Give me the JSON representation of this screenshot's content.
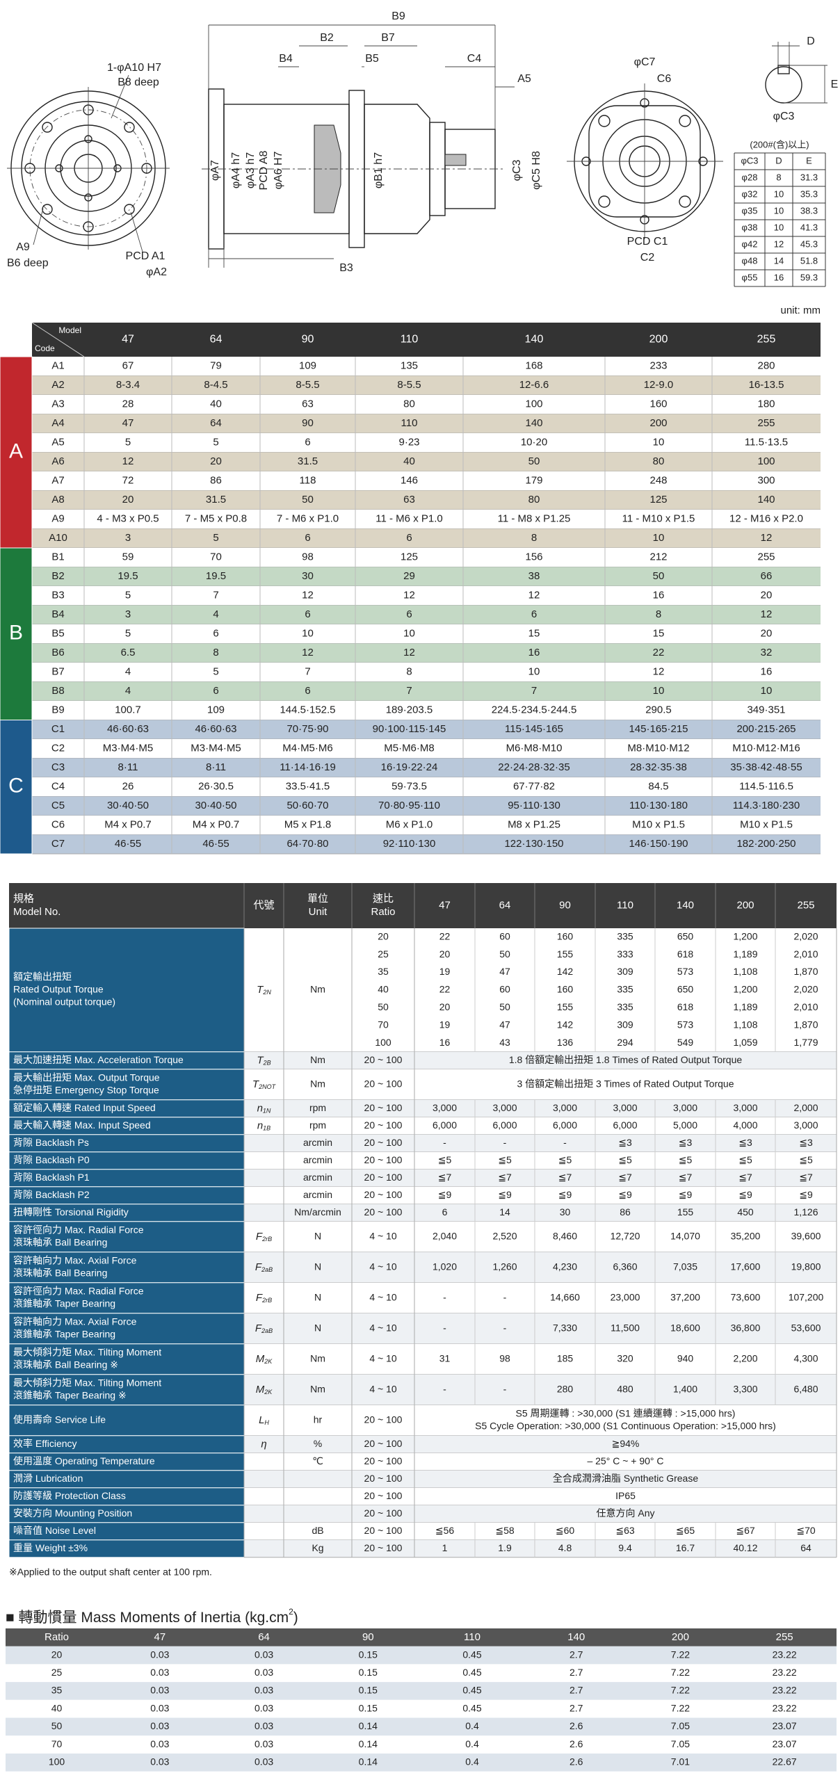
{
  "drawing": {
    "labels": [
      "B9",
      "B2",
      "B7",
      "B4",
      "B5",
      "C4",
      "A5",
      "1-φA10 H7",
      "B8 deep",
      "A9",
      "B6 deep",
      "PCD A1",
      "φA2",
      "φA7",
      "φA4 h7",
      "φA3 h7",
      "PCD A8",
      "φA6 H7",
      "φB1 h7",
      "B3",
      "φC3",
      "φC5 H8",
      "φC7",
      "C6",
      "PCD C1",
      "C2",
      "D",
      "E",
      "φC3"
    ],
    "keyway_table": {
      "caption": "(200#(含)以上)",
      "header": [
        "φC3",
        "D",
        "E"
      ],
      "rows": [
        [
          "φ28",
          "8",
          "31.3"
        ],
        [
          "φ32",
          "10",
          "35.3"
        ],
        [
          "φ35",
          "10",
          "38.3"
        ],
        [
          "φ38",
          "10",
          "41.3"
        ],
        [
          "φ42",
          "12",
          "45.3"
        ],
        [
          "φ48",
          "14",
          "51.8"
        ],
        [
          "φ55",
          "16",
          "59.3"
        ]
      ]
    }
  },
  "unit": "unit: mm",
  "dimensions": {
    "corner_top": "Model",
    "corner_bottom": "Code",
    "models": [
      "47",
      "64",
      "90",
      "110",
      "140",
      "200",
      "255"
    ],
    "groups": [
      {
        "name": "A",
        "rows": [
          {
            "code": "A1",
            "values": [
              "67",
              "79",
              "109",
              "135",
              "168",
              "233",
              "280"
            ]
          },
          {
            "code": "A2",
            "values": [
              "8-3.4",
              "8-4.5",
              "8-5.5",
              "8-5.5",
              "12-6.6",
              "12-9.0",
              "16-13.5"
            ]
          },
          {
            "code": "A3",
            "values": [
              "28",
              "40",
              "63",
              "80",
              "100",
              "160",
              "180"
            ]
          },
          {
            "code": "A4",
            "values": [
              "47",
              "64",
              "90",
              "110",
              "140",
              "200",
              "255"
            ]
          },
          {
            "code": "A5",
            "values": [
              "5",
              "5",
              "6",
              "9·23",
              "10·20",
              "10",
              "11.5·13.5"
            ]
          },
          {
            "code": "A6",
            "values": [
              "12",
              "20",
              "31.5",
              "40",
              "50",
              "80",
              "100"
            ]
          },
          {
            "code": "A7",
            "values": [
              "72",
              "86",
              "118",
              "146",
              "179",
              "248",
              "300"
            ]
          },
          {
            "code": "A8",
            "values": [
              "20",
              "31.5",
              "50",
              "63",
              "80",
              "125",
              "140"
            ]
          },
          {
            "code": "A9",
            "values": [
              "4 - M3 x P0.5",
              "7 - M5 x P0.8",
              "7 - M6 x P1.0",
              "11 - M6 x P1.0",
              "11 - M8 x P1.25",
              "11 - M10 x P1.5",
              "12 - M16 x P2.0"
            ]
          },
          {
            "code": "A10",
            "values": [
              "3",
              "5",
              "6",
              "6",
              "8",
              "10",
              "12"
            ]
          }
        ]
      },
      {
        "name": "B",
        "rows": [
          {
            "code": "B1",
            "values": [
              "59",
              "70",
              "98",
              "125",
              "156",
              "212",
              "255"
            ]
          },
          {
            "code": "B2",
            "values": [
              "19.5",
              "19.5",
              "30",
              "29",
              "38",
              "50",
              "66"
            ]
          },
          {
            "code": "B3",
            "values": [
              "5",
              "7",
              "12",
              "12",
              "12",
              "16",
              "20"
            ]
          },
          {
            "code": "B4",
            "values": [
              "3",
              "4",
              "6",
              "6",
              "6",
              "8",
              "12"
            ]
          },
          {
            "code": "B5",
            "values": [
              "5",
              "6",
              "10",
              "10",
              "15",
              "15",
              "20"
            ]
          },
          {
            "code": "B6",
            "values": [
              "6.5",
              "8",
              "12",
              "12",
              "16",
              "22",
              "32"
            ]
          },
          {
            "code": "B7",
            "values": [
              "4",
              "5",
              "7",
              "8",
              "10",
              "12",
              "16"
            ]
          },
          {
            "code": "B8",
            "values": [
              "4",
              "6",
              "6",
              "7",
              "7",
              "10",
              "10"
            ]
          },
          {
            "code": "B9",
            "values": [
              "100.7",
              "109",
              "144.5·152.5",
              "189·203.5",
              "224.5·234.5·244.5",
              "290.5",
              "349·351"
            ]
          }
        ]
      },
      {
        "name": "C",
        "rows": [
          {
            "code": "C1",
            "values": [
              "46·60·63",
              "46·60·63",
              "70·75·90",
              "90·100·115·145",
              "115·145·165",
              "145·165·215",
              "200·215·265"
            ]
          },
          {
            "code": "C2",
            "values": [
              "M3·M4·M5",
              "M3·M4·M5",
              "M4·M5·M6",
              "M5·M6·M8",
              "M6·M8·M10",
              "M8·M10·M12",
              "M10·M12·M16"
            ]
          },
          {
            "code": "C3",
            "values": [
              "8·11",
              "8·11",
              "11·14·16·19",
              "16·19·22·24",
              "22·24·28·32·35",
              "28·32·35·38",
              "35·38·42·48·55"
            ]
          },
          {
            "code": "C4",
            "values": [
              "26",
              "26·30.5",
              "33.5·41.5",
              "59·73.5",
              "67·77·82",
              "84.5",
              "114.5·116.5"
            ]
          },
          {
            "code": "C5",
            "values": [
              "30·40·50",
              "30·40·50",
              "50·60·70",
              "70·80·95·110",
              "95·110·130",
              "110·130·180",
              "114.3·180·230"
            ]
          },
          {
            "code": "C6",
            "values": [
              "M4 x P0.7",
              "M4 x P0.7",
              "M5 x P1.8",
              "M6 x P1.0",
              "M8 x P1.25",
              "M10 x P1.5",
              "M10 x P1.5"
            ]
          },
          {
            "code": "C7",
            "values": [
              "46·55",
              "46·55",
              "64·70·80",
              "92·110·130",
              "122·130·150",
              "146·150·190",
              "182·200·250"
            ]
          }
        ]
      }
    ]
  },
  "specs": {
    "header": {
      "spec": [
        "規格",
        "Model No."
      ],
      "symbol": "代號",
      "unit": [
        "單位",
        "Unit"
      ],
      "ratio": [
        "速比",
        "Ratio"
      ],
      "models": [
        "47",
        "64",
        "90",
        "110",
        "140",
        "200",
        "255"
      ]
    },
    "rows": [
      {
        "label": [
          "額定輸出扭矩",
          "Rated Output Torque",
          "(Nominal output torque)"
        ],
        "symbol": {
          "base": "T",
          "sub": "2N"
        },
        "unit": "Nm",
        "ratio": [
          "20",
          "25",
          "35",
          "40",
          "50",
          "70",
          "100"
        ],
        "values": [
          [
            "22",
            "60",
            "160",
            "335",
            "650",
            "1,200",
            "2,020"
          ],
          [
            "20",
            "50",
            "155",
            "333",
            "618",
            "1,189",
            "2,010"
          ],
          [
            "19",
            "47",
            "142",
            "309",
            "573",
            "1,108",
            "1,870"
          ],
          [
            "22",
            "60",
            "160",
            "335",
            "650",
            "1,200",
            "2,020"
          ],
          [
            "20",
            "50",
            "155",
            "335",
            "618",
            "1,189",
            "2,010"
          ],
          [
            "19",
            "47",
            "142",
            "309",
            "573",
            "1,108",
            "1,870"
          ],
          [
            "16",
            "43",
            "136",
            "294",
            "549",
            "1,059",
            "1,779"
          ]
        ]
      },
      {
        "label": [
          "最大加速扭矩 Max. Acceleration Torque"
        ],
        "symbol": {
          "base": "T",
          "sub": "2B"
        },
        "unit": "Nm",
        "ratio": "20 ~ 100",
        "span": [
          "1.8 倍額定輸出扭矩  1.8 Times of Rated Output Torque"
        ]
      },
      {
        "label": [
          "最大輸出扭矩  Max. Output Torque",
          "急停扭矩  Emergency Stop Torque"
        ],
        "symbol": {
          "base": "T",
          "sub": "2NOT"
        },
        "unit": "Nm",
        "ratio": "20 ~ 100",
        "span": [
          "3 倍額定輸出扭矩  3 Times of Rated Output Torque"
        ]
      },
      {
        "label": [
          "額定輸入轉速  Rated Input Speed"
        ],
        "symbol": {
          "base": "n",
          "sub": "1N"
        },
        "unit": "rpm",
        "ratio": "20 ~ 100",
        "values": [
          "3,000",
          "3,000",
          "3,000",
          "3,000",
          "3,000",
          "3,000",
          "2,000"
        ]
      },
      {
        "label": [
          "最大輸入轉速  Max. Input Speed"
        ],
        "symbol": {
          "base": "n",
          "sub": "1B"
        },
        "unit": "rpm",
        "ratio": "20 ~ 100",
        "values": [
          "6,000",
          "6,000",
          "6,000",
          "6,000",
          "5,000",
          "4,000",
          "3,000"
        ]
      },
      {
        "label": [
          "背隙  Backlash Ps"
        ],
        "unit": "arcmin",
        "ratio": "20 ~ 100",
        "values": [
          "-",
          "-",
          "-",
          "≦3",
          "≦3",
          "≦3",
          "≦3"
        ]
      },
      {
        "label": [
          "背隙  Backlash P0"
        ],
        "unit": "arcmin",
        "ratio": "20 ~ 100",
        "values": [
          "≦5",
          "≦5",
          "≦5",
          "≦5",
          "≦5",
          "≦5",
          "≦5"
        ]
      },
      {
        "label": [
          "背隙  Backlash P1"
        ],
        "unit": "arcmin",
        "ratio": "20 ~ 100",
        "values": [
          "≦7",
          "≦7",
          "≦7",
          "≦7",
          "≦7",
          "≦7",
          "≦7"
        ]
      },
      {
        "label": [
          "背隙  Backlash P2"
        ],
        "unit": "arcmin",
        "ratio": "20 ~ 100",
        "values": [
          "≦9",
          "≦9",
          "≦9",
          "≦9",
          "≦9",
          "≦9",
          "≦9"
        ]
      },
      {
        "label": [
          "扭轉剛性  Torsional Rigidity"
        ],
        "unit": "Nm/arcmin",
        "ratio": "20 ~ 100",
        "values": [
          "6",
          "14",
          "30",
          "86",
          "155",
          "450",
          "1,126"
        ]
      },
      {
        "label": [
          "容許徑向力  Max. Radial Force",
          "滾珠軸承  Ball Bearing"
        ],
        "symbol": {
          "base": "F",
          "sub": "2rB"
        },
        "unit": "N",
        "ratio": "4 ~ 10",
        "values": [
          "2,040",
          "2,520",
          "8,460",
          "12,720",
          "14,070",
          "35,200",
          "39,600"
        ]
      },
      {
        "label": [
          "容許軸向力  Max. Axial Force",
          "滾珠軸承  Ball Bearing"
        ],
        "symbol": {
          "base": "F",
          "sub": "2aB"
        },
        "unit": "N",
        "ratio": "4 ~ 10",
        "values": [
          "1,020",
          "1,260",
          "4,230",
          "6,360",
          "7,035",
          "17,600",
          "19,800"
        ]
      },
      {
        "label": [
          "容許徑向力  Max. Radial Force",
          "滾錐軸承  Taper Bearing"
        ],
        "symbol": {
          "base": "F",
          "sub": "2rB"
        },
        "unit": "N",
        "ratio": "4 ~ 10",
        "values": [
          "-",
          "-",
          "14,660",
          "23,000",
          "37,200",
          "73,600",
          "107,200"
        ]
      },
      {
        "label": [
          "容許軸向力  Max. Axial Force",
          "滾錐軸承  Taper Bearing"
        ],
        "symbol": {
          "base": "F",
          "sub": "2aB"
        },
        "unit": "N",
        "ratio": "4 ~ 10",
        "values": [
          "-",
          "-",
          "7,330",
          "11,500",
          "18,600",
          "36,800",
          "53,600"
        ]
      },
      {
        "label": [
          "最大傾斜力矩  Max. Tilting Moment",
          "滾珠軸承  Ball Bearing  ※"
        ],
        "symbol": {
          "base": "M",
          "sub": "2K"
        },
        "unit": "Nm",
        "ratio": "4 ~ 10",
        "values": [
          "31",
          "98",
          "185",
          "320",
          "940",
          "2,200",
          "4,300"
        ]
      },
      {
        "label": [
          "最大傾斜力矩  Max. Tilting Moment",
          "滾錐軸承  Taper Bearing  ※"
        ],
        "symbol": {
          "base": "M",
          "sub": "2K"
        },
        "unit": "Nm",
        "ratio": "4 ~ 10",
        "values": [
          "-",
          "-",
          "280",
          "480",
          "1,400",
          "3,300",
          "6,480"
        ]
      },
      {
        "label": [
          "使用壽命  Service Life"
        ],
        "symbol": {
          "base": "L",
          "sub": "H"
        },
        "unit": "hr",
        "ratio": "20 ~ 100",
        "span": [
          "S5 周期運轉 : >30,000 (S1 連續運轉 : >15,000 hrs)",
          "S5 Cycle Operation: >30,000 (S1 Continuous Operation: >15,000 hrs)"
        ]
      },
      {
        "label": [
          "效率  Efficiency"
        ],
        "symbol": {
          "base": "η"
        },
        "unit": "%",
        "ratio": "20 ~ 100",
        "span": [
          "≧94%"
        ]
      },
      {
        "label": [
          "使用溫度  Operating Temperature"
        ],
        "unit": "℃",
        "ratio": "20 ~ 100",
        "span": [
          "– 25° C  ~  + 90° C"
        ]
      },
      {
        "label": [
          "潤滑  Lubrication"
        ],
        "ratio": "20 ~ 100",
        "span": [
          "全合成潤滑油脂  Synthetic Grease"
        ]
      },
      {
        "label": [
          "防護等級  Protection Class"
        ],
        "ratio": "20 ~ 100",
        "span": [
          "IP65"
        ]
      },
      {
        "label": [
          "安裝方向  Mounting Position"
        ],
        "ratio": "20 ~ 100",
        "span": [
          "任意方向  Any"
        ]
      },
      {
        "label": [
          "噪音值  Noise Level"
        ],
        "unit": "dB",
        "ratio": "20 ~ 100",
        "values": [
          "≦56",
          "≦58",
          "≦60",
          "≦63",
          "≦65",
          "≦67",
          "≦70"
        ]
      },
      {
        "label": [
          "重量  Weight  ±3%"
        ],
        "unit": "Kg",
        "ratio": "20 ~ 100",
        "values": [
          "1",
          "1.9",
          "4.8",
          "9.4",
          "16.7",
          "40.12",
          "64"
        ]
      }
    ]
  },
  "footnote": "※Applied to the output shaft center at 100 rpm.",
  "inertia": {
    "title": {
      "text": "■ 轉動慣量 Mass Moments of Inertia (kg.cm",
      "sup": "2",
      "end": ")"
    },
    "header": [
      "Ratio",
      "47",
      "64",
      "90",
      "110",
      "140",
      "200",
      "255"
    ],
    "rows": [
      [
        "20",
        "0.03",
        "0.03",
        "0.15",
        "0.45",
        "2.7",
        "7.22",
        "23.22"
      ],
      [
        "25",
        "0.03",
        "0.03",
        "0.15",
        "0.45",
        "2.7",
        "7.22",
        "23.22"
      ],
      [
        "35",
        "0.03",
        "0.03",
        "0.15",
        "0.45",
        "2.7",
        "7.22",
        "23.22"
      ],
      [
        "40",
        "0.03",
        "0.03",
        "0.15",
        "0.45",
        "2.7",
        "7.22",
        "23.22"
      ],
      [
        "50",
        "0.03",
        "0.03",
        "0.14",
        "0.4",
        "2.6",
        "7.05",
        "23.07"
      ],
      [
        "70",
        "0.03",
        "0.03",
        "0.14",
        "0.4",
        "2.6",
        "7.05",
        "23.07"
      ],
      [
        "100",
        "0.03",
        "0.03",
        "0.14",
        "0.4",
        "2.6",
        "7.01",
        "22.67"
      ]
    ]
  }
}
